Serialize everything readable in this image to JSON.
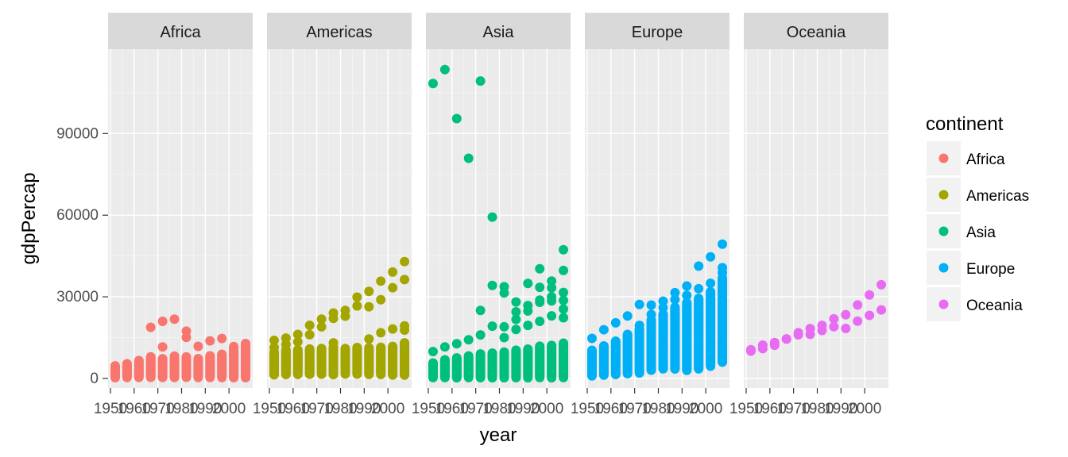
{
  "chart_data": {
    "type": "scatter",
    "facet_by": "continent",
    "xlabel": "year",
    "ylabel": "gdpPercap",
    "xlim": [
      1949,
      2010
    ],
    "ylim": [
      -3500,
      121000
    ],
    "x_ticks": [
      1950,
      1960,
      1970,
      1980,
      1990,
      2000
    ],
    "x_tick_labels": [
      "1950",
      "1960",
      "1970",
      "1980",
      "1990",
      "2000"
    ],
    "y_ticks": [
      0,
      30000,
      60000,
      90000
    ],
    "y_tick_labels": [
      "0",
      "30000",
      "60000",
      "90000"
    ],
    "grid": true,
    "legend": {
      "title": "continent",
      "placement": "right",
      "entries": [
        {
          "label": "Africa",
          "color": "#F8766D"
        },
        {
          "label": "Americas",
          "color": "#A3A500"
        },
        {
          "label": "Asia",
          "color": "#00BF7D"
        },
        {
          "label": "Europe",
          "color": "#00B0F6"
        },
        {
          "label": "Oceania",
          "color": "#E76BF3"
        }
      ]
    },
    "x_years": [
      1952,
      1957,
      1962,
      1967,
      1972,
      1977,
      1982,
      1987,
      1992,
      1997,
      2002,
      2007
    ],
    "panels": [
      {
        "name": "Africa",
        "color": "#F8766D",
        "ranges": [
          [
            300,
            4800
          ],
          [
            400,
            5500
          ],
          [
            400,
            6600
          ],
          [
            400,
            8200
          ],
          [
            400,
            7500
          ],
          [
            400,
            7500
          ],
          [
            400,
            8000
          ],
          [
            400,
            7500
          ],
          [
            400,
            8500
          ],
          [
            300,
            9000
          ],
          [
            250,
            12000
          ],
          [
            250,
            13200
          ]
        ],
        "outliers": [
          [
            1967,
            18800
          ],
          [
            1972,
            21000
          ],
          [
            1972,
            11600
          ],
          [
            1977,
            21800
          ],
          [
            1977,
            8200
          ],
          [
            1982,
            17400
          ],
          [
            1982,
            15100
          ],
          [
            1987,
            11800
          ],
          [
            1992,
            13800
          ],
          [
            1997,
            14700
          ]
        ]
      },
      {
        "name": "Americas",
        "color": "#A3A500",
        "ranges": [
          [
            1400,
            10000
          ],
          [
            1500,
            10500
          ],
          [
            1500,
            10800
          ],
          [
            1500,
            10900
          ],
          [
            1600,
            11000
          ],
          [
            1400,
            11500
          ],
          [
            1600,
            11200
          ],
          [
            1600,
            11500
          ],
          [
            1500,
            11500
          ],
          [
            1400,
            11800
          ],
          [
            1300,
            12000
          ],
          [
            1200,
            13200
          ]
        ],
        "outliers": [
          [
            1952,
            13990
          ],
          [
            1957,
            14850
          ],
          [
            1962,
            16170
          ],
          [
            1967,
            19530
          ],
          [
            1972,
            21800
          ],
          [
            1977,
            24070
          ],
          [
            1982,
            25010
          ],
          [
            1987,
            29880
          ],
          [
            1992,
            32000
          ],
          [
            1997,
            35770
          ],
          [
            2002,
            39100
          ],
          [
            2007,
            42950
          ],
          [
            1952,
            11370
          ],
          [
            1957,
            12500
          ],
          [
            1962,
            13460
          ],
          [
            1967,
            16080
          ],
          [
            1972,
            18970
          ],
          [
            1977,
            22090
          ],
          [
            1982,
            22900
          ],
          [
            1987,
            26630
          ],
          [
            1992,
            26340
          ],
          [
            1997,
            28950
          ],
          [
            2002,
            33330
          ],
          [
            2007,
            36320
          ],
          [
            1977,
            13100
          ],
          [
            1992,
            14500
          ],
          [
            1997,
            16800
          ],
          [
            2002,
            18200
          ],
          [
            2007,
            19300
          ],
          [
            2007,
            17800
          ]
        ]
      },
      {
        "name": "Asia",
        "color": "#00BF7D",
        "ranges": [
          [
            300,
            6000
          ],
          [
            300,
            7000
          ],
          [
            300,
            7500
          ],
          [
            300,
            8500
          ],
          [
            300,
            9000
          ],
          [
            300,
            9500
          ],
          [
            300,
            10000
          ],
          [
            300,
            10500
          ],
          [
            300,
            11000
          ],
          [
            300,
            12000
          ],
          [
            300,
            12500
          ],
          [
            300,
            13000
          ]
        ],
        "outliers": [
          [
            1952,
            108400
          ],
          [
            1957,
            113500
          ],
          [
            1962,
            95500
          ],
          [
            1967,
            80900
          ],
          [
            1972,
            109300
          ],
          [
            1977,
            59300
          ],
          [
            1982,
            33700
          ],
          [
            1987,
            28100
          ],
          [
            1992,
            34900
          ],
          [
            1997,
            40300
          ],
          [
            2002,
            35800
          ],
          [
            2007,
            47300
          ],
          [
            1952,
            9870
          ],
          [
            1957,
            11600
          ],
          [
            1962,
            12750
          ],
          [
            1967,
            14200
          ],
          [
            1972,
            16000
          ],
          [
            1972,
            25000
          ],
          [
            1977,
            19200
          ],
          [
            1977,
            34200
          ],
          [
            1982,
            31400
          ],
          [
            1982,
            19000
          ],
          [
            1987,
            24500
          ],
          [
            1987,
            21700
          ],
          [
            1992,
            26800
          ],
          [
            1992,
            24800
          ],
          [
            1997,
            33500
          ],
          [
            1997,
            28800
          ],
          [
            1997,
            28000
          ],
          [
            2002,
            33300
          ],
          [
            2002,
            30000
          ],
          [
            2002,
            28500
          ],
          [
            2007,
            39700
          ],
          [
            2007,
            31600
          ],
          [
            2007,
            28700
          ],
          [
            2007,
            25500
          ],
          [
            2007,
            22300
          ],
          [
            1982,
            15000
          ],
          [
            1987,
            18000
          ],
          [
            1992,
            19500
          ],
          [
            1997,
            21000
          ],
          [
            2002,
            23000
          ]
        ]
      },
      {
        "name": "Europe",
        "color": "#00B0F6",
        "ranges": [
          [
            1000,
            10500
          ],
          [
            1200,
            12000
          ],
          [
            1500,
            14000
          ],
          [
            1800,
            16500
          ],
          [
            2000,
            18500
          ],
          [
            3000,
            21500
          ],
          [
            3500,
            24000
          ],
          [
            3500,
            26500
          ],
          [
            3000,
            28000
          ],
          [
            3500,
            29500
          ],
          [
            4500,
            32000
          ],
          [
            6000,
            37000
          ]
        ],
        "outliers": [
          [
            1952,
            14730
          ],
          [
            1957,
            17910
          ],
          [
            1962,
            20430
          ],
          [
            1967,
            22970
          ],
          [
            1972,
            27200
          ],
          [
            1977,
            26980
          ],
          [
            1982,
            28400
          ],
          [
            1987,
            31540
          ],
          [
            1992,
            33960
          ],
          [
            1997,
            41280
          ],
          [
            2002,
            44680
          ],
          [
            2007,
            49360
          ],
          [
            1972,
            19500
          ],
          [
            1977,
            23500
          ],
          [
            1982,
            26000
          ],
          [
            1987,
            29000
          ],
          [
            1992,
            30500
          ],
          [
            1997,
            33000
          ],
          [
            2002,
            35000
          ],
          [
            2007,
            40700
          ],
          [
            2007,
            38900
          ]
        ]
      },
      {
        "name": "Oceania",
        "color": "#E76BF3",
        "ranges": [],
        "outliers": [
          [
            1952,
            10040
          ],
          [
            1957,
            10950
          ],
          [
            1962,
            12220
          ],
          [
            1967,
            14530
          ],
          [
            1972,
            16790
          ],
          [
            1977,
            18330
          ],
          [
            1982,
            19480
          ],
          [
            1987,
            21890
          ],
          [
            1992,
            23420
          ],
          [
            1997,
            26990
          ],
          [
            2002,
            30690
          ],
          [
            2007,
            34440
          ],
          [
            1952,
            10560
          ],
          [
            1957,
            12250
          ],
          [
            1962,
            13180
          ],
          [
            1967,
            14460
          ],
          [
            1972,
            16050
          ],
          [
            1977,
            16230
          ],
          [
            1982,
            17630
          ],
          [
            1987,
            19010
          ],
          [
            1992,
            18360
          ],
          [
            1997,
            21050
          ],
          [
            2002,
            23190
          ],
          [
            2007,
            25190
          ]
        ]
      }
    ]
  }
}
